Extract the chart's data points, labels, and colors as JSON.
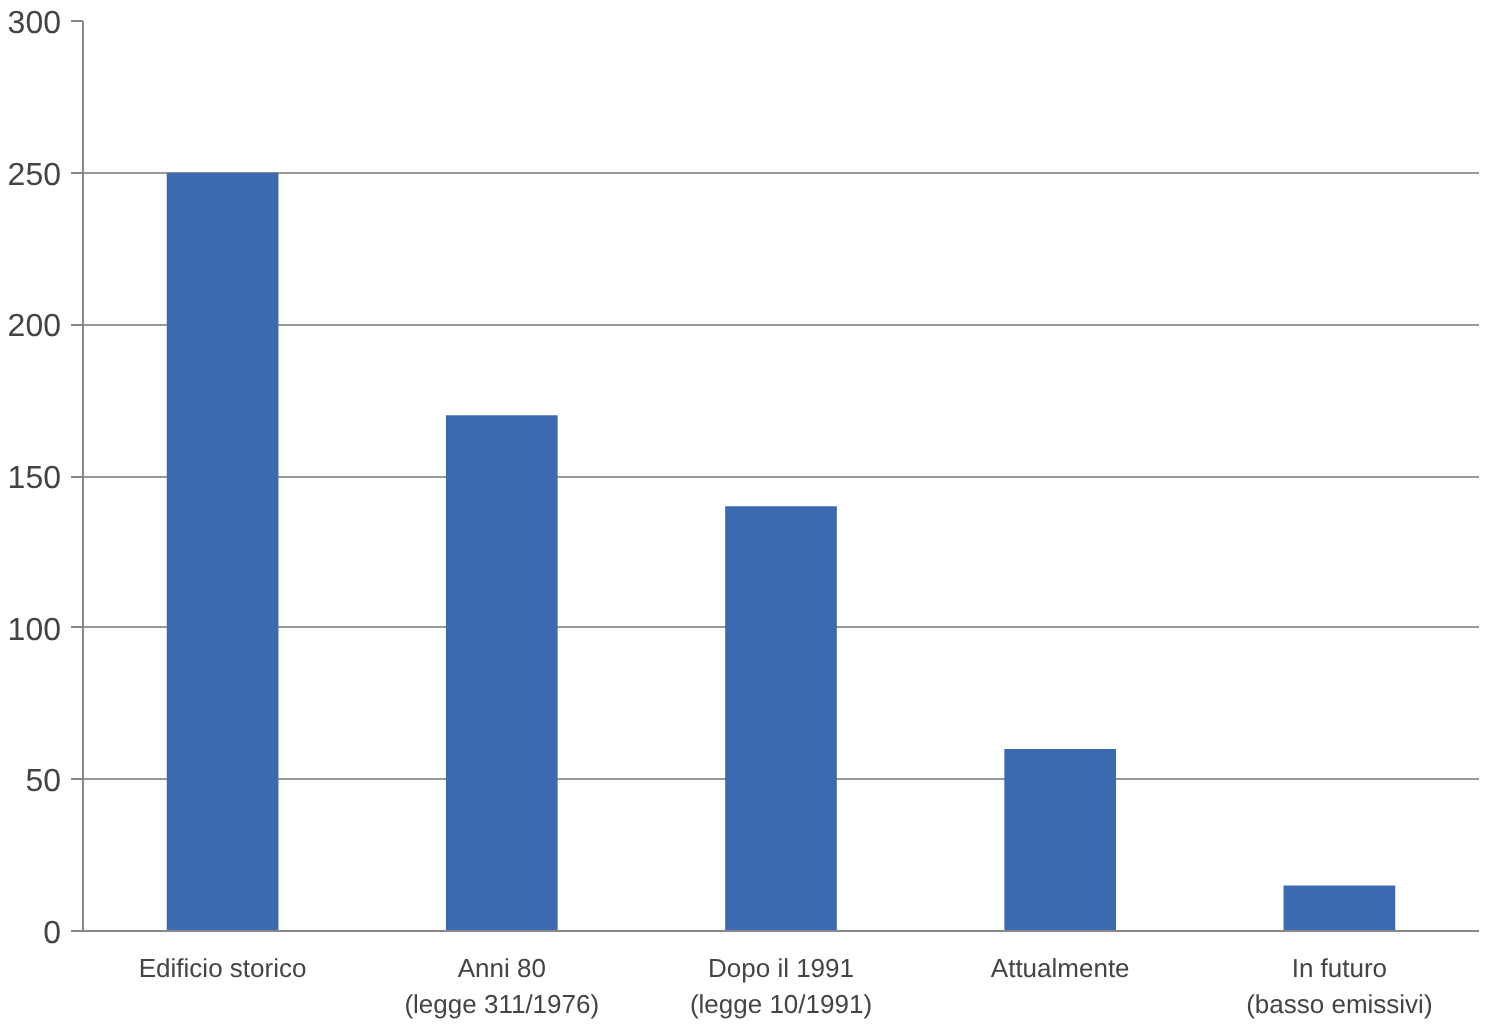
{
  "chart_data": {
    "type": "bar",
    "categories": [
      "Edificio storico",
      "Anni 80\n(legge 311/1976)",
      "Dopo il 1991\n(legge 10/1991)",
      "Attualmente",
      "In futuro\n(basso emissivi)"
    ],
    "values": [
      250,
      170,
      140,
      60,
      15
    ],
    "color": "#3b6ab0",
    "ylim": [
      0,
      300
    ],
    "yticks": [
      0,
      50,
      100,
      150,
      200,
      250,
      300
    ],
    "grid": "y"
  }
}
